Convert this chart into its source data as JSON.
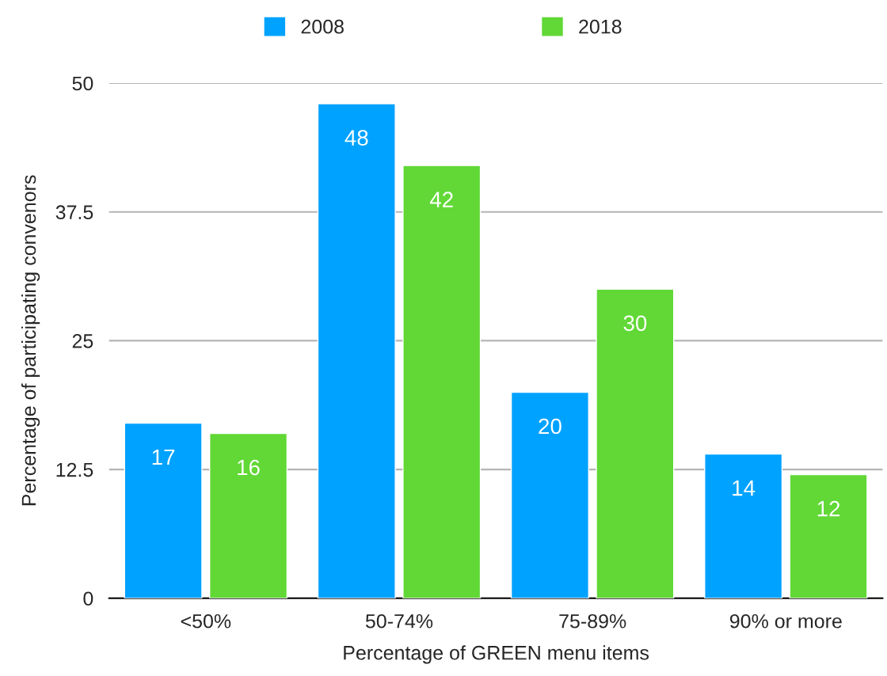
{
  "chart_data": {
    "type": "bar",
    "xlabel": "Percentage of GREEN menu items",
    "ylabel": "Percentage of participating convenors",
    "categories": [
      "<50%",
      "50-74%",
      "75-89%",
      "90% or more"
    ],
    "series": [
      {
        "name": "2008",
        "color": "#00a2ff",
        "values": [
          17,
          48,
          20,
          14
        ]
      },
      {
        "name": "2018",
        "color": "#61d836",
        "values": [
          16,
          42,
          30,
          12
        ]
      }
    ],
    "ylim": [
      0,
      50
    ],
    "yticks": [
      0,
      12.5,
      25,
      37.5,
      50
    ],
    "grid": "y",
    "legend": "top",
    "data_labels": true
  }
}
